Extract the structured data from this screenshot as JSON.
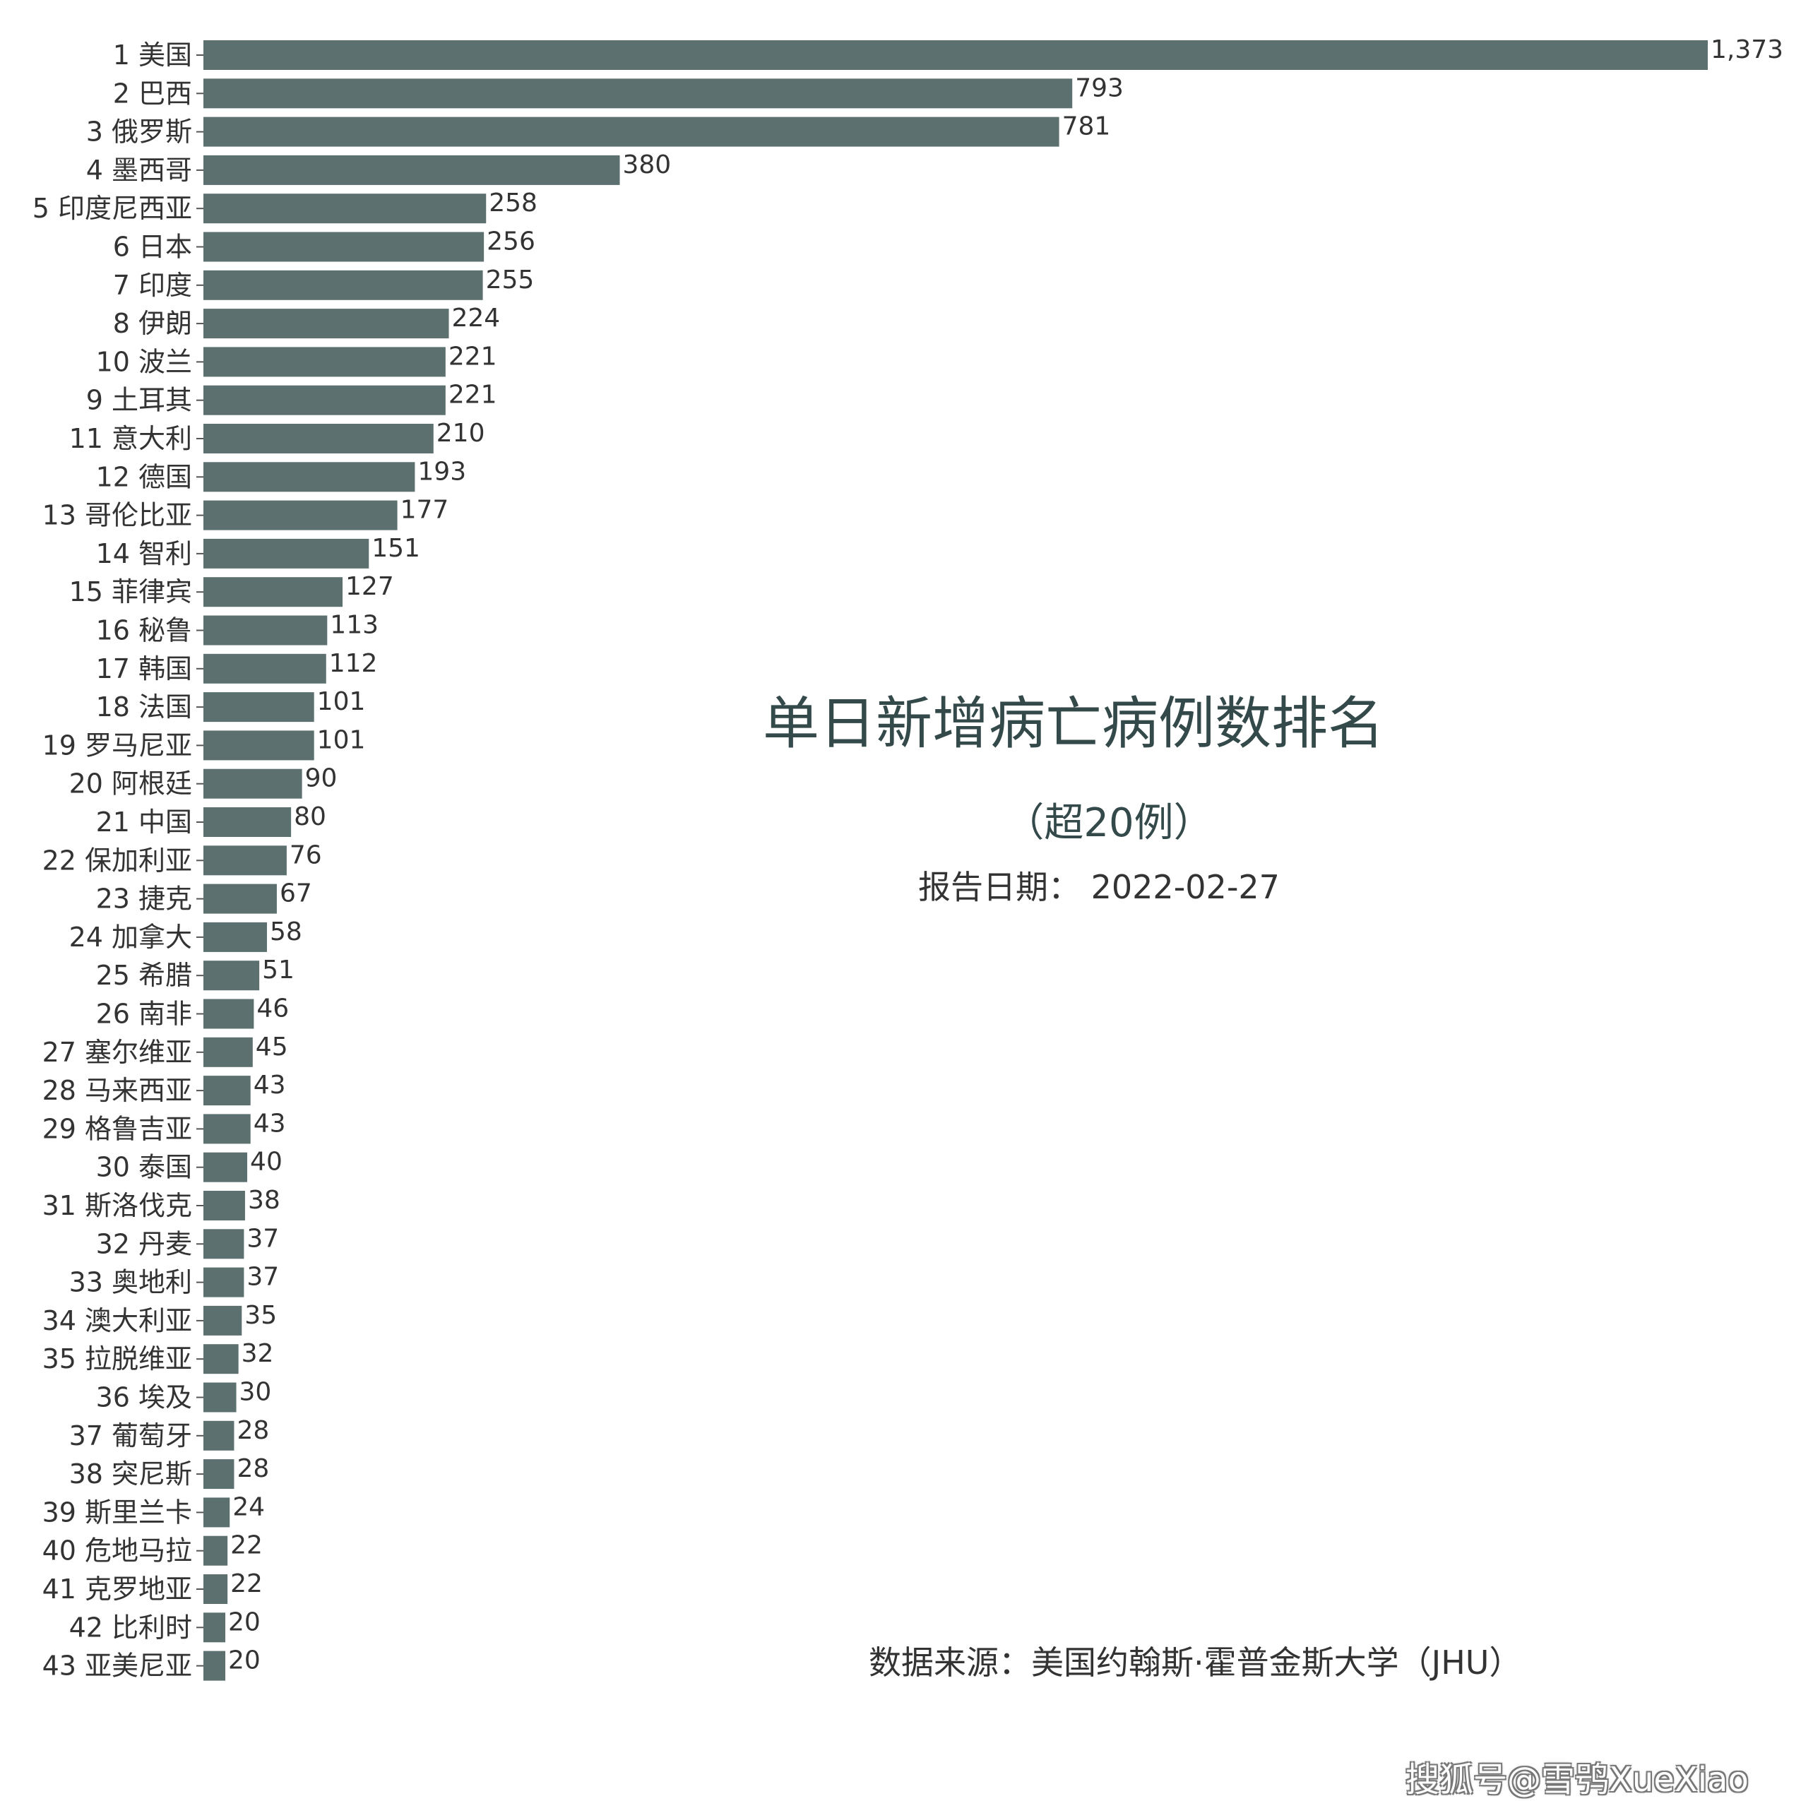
{
  "colors": {
    "bar": "#5c716f",
    "title": "#34494a",
    "text": "#333333"
  },
  "chart_data": {
    "type": "bar",
    "orientation": "horizontal",
    "title": "单日新增病亡病例数排名",
    "subtitle": "（超20例）",
    "report_date": "报告日期：  2022-02-27",
    "source": "数据来源：美国约翰斯·霍普金斯大学（JHU）",
    "grid": false,
    "categories": [
      "1 美国",
      "2 巴西",
      "3 俄罗斯",
      "4 墨西哥",
      "5 印度尼西亚",
      "6 日本",
      "7 印度",
      "8 伊朗",
      "10 波兰",
      "9 土耳其",
      "11 意大利",
      "12 德国",
      "13 哥伦比亚",
      "14 智利",
      "15 菲律宾",
      "16 秘鲁",
      "17 韩国",
      "18 法国",
      "19 罗马尼亚",
      "20 阿根廷",
      "21 中国",
      "22 保加利亚",
      "23 捷克",
      "24 加拿大",
      "25 希腊",
      "26 南非",
      "27 塞尔维亚",
      "28 马来西亚",
      "29 格鲁吉亚",
      "30 泰国",
      "31 斯洛伐克",
      "32 丹麦",
      "33 奥地利",
      "34 澳大利亚",
      "35 拉脱维亚",
      "36 埃及",
      "37 葡萄牙",
      "38 突尼斯",
      "39 斯里兰卡",
      "40 危地马拉",
      "41 克罗地亚",
      "42 比利时",
      "43 亚美尼亚"
    ],
    "values": [
      1373,
      793,
      781,
      380,
      258,
      256,
      255,
      224,
      221,
      221,
      210,
      193,
      177,
      151,
      127,
      113,
      112,
      101,
      101,
      90,
      80,
      76,
      67,
      58,
      51,
      46,
      45,
      43,
      43,
      40,
      38,
      37,
      37,
      35,
      32,
      30,
      28,
      28,
      24,
      22,
      22,
      20,
      20
    ],
    "value_labels": [
      "1,373",
      "793",
      "781",
      "380",
      "258",
      "256",
      "255",
      "224",
      "221",
      "221",
      "210",
      "193",
      "177",
      "151",
      "127",
      "113",
      "112",
      "101",
      "101",
      "90",
      "80",
      "76",
      "67",
      "58",
      "51",
      "46",
      "45",
      "43",
      "43",
      "40",
      "38",
      "37",
      "37",
      "35",
      "32",
      "30",
      "28",
      "28",
      "24",
      "22",
      "22",
      "20",
      "20"
    ]
  },
  "watermark": "搜狐号@雪鸮XueXiao"
}
